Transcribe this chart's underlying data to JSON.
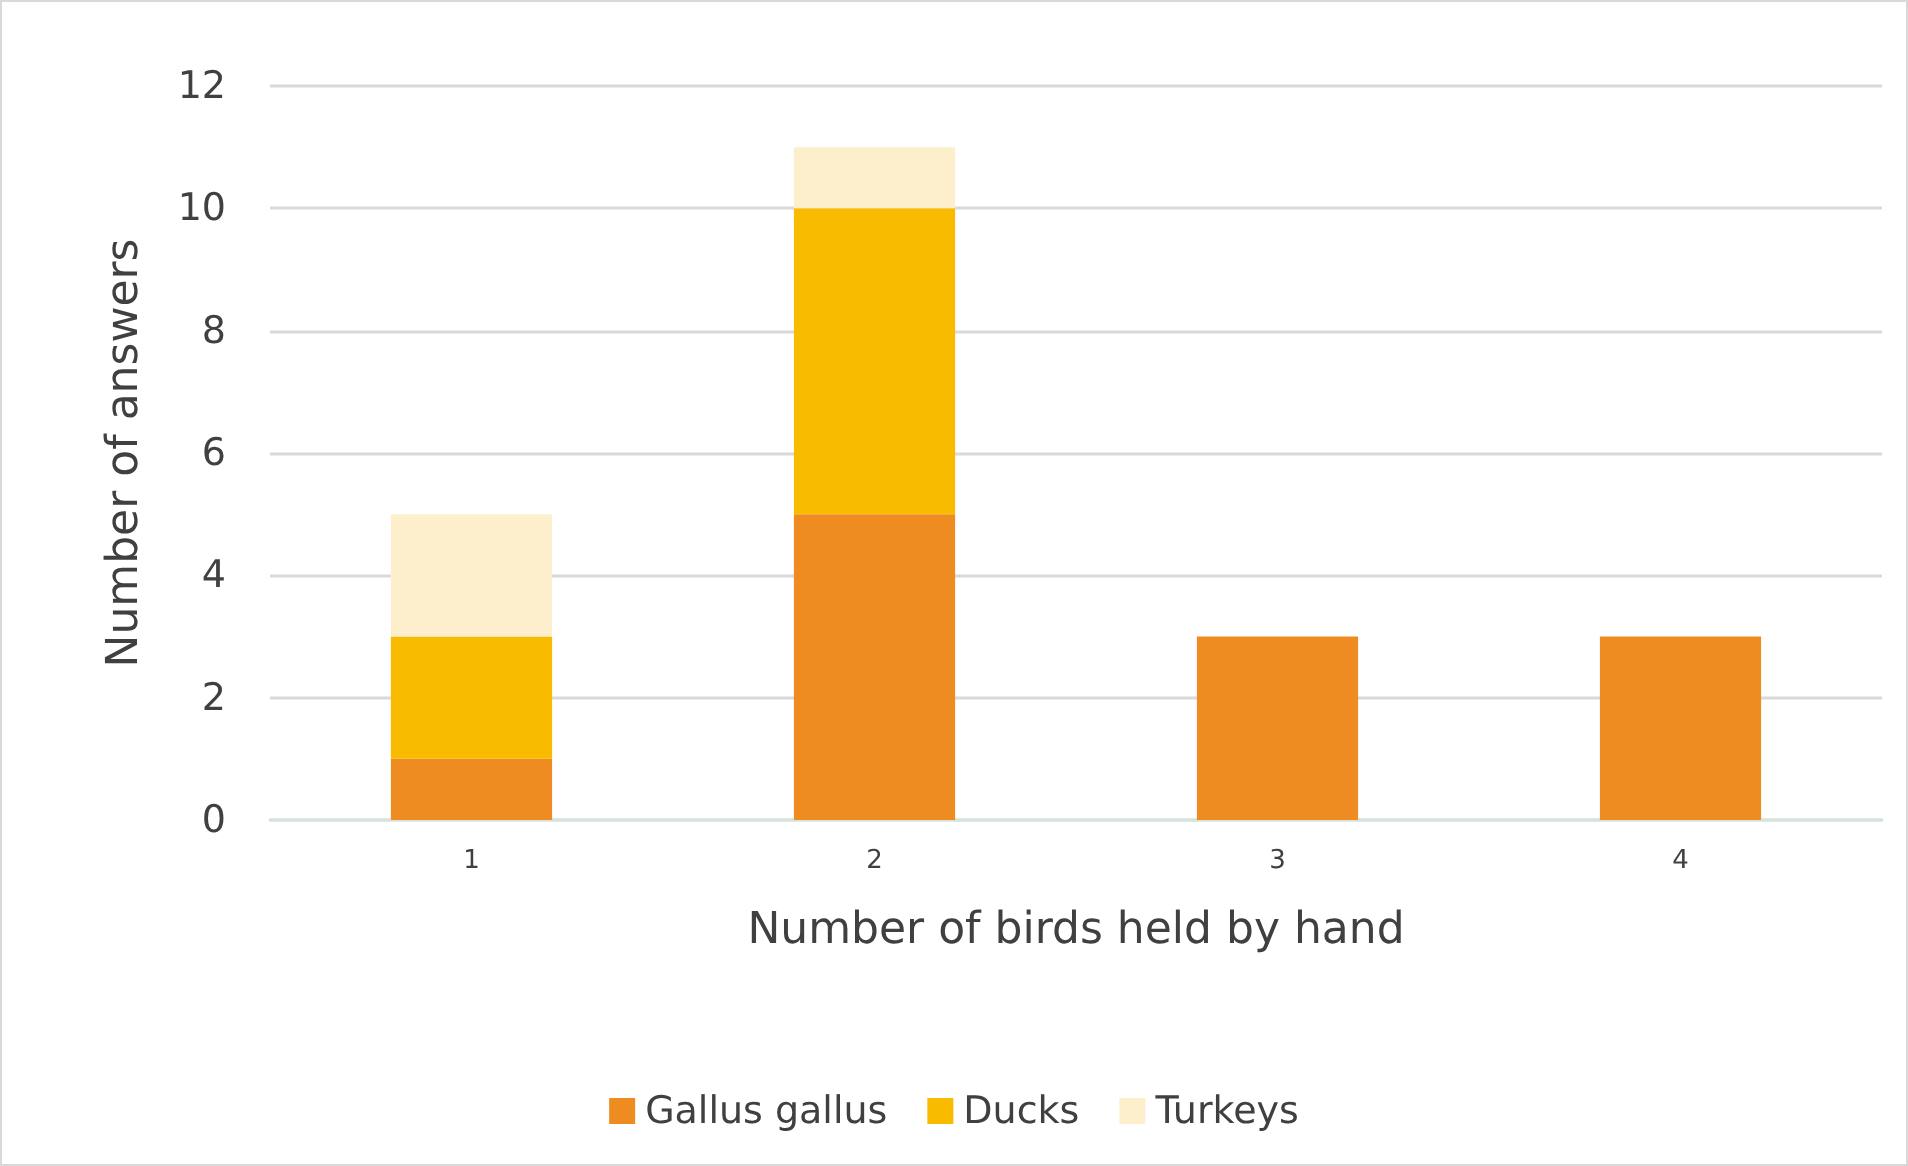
{
  "chart_data": {
    "type": "bar",
    "stacked": true,
    "xlabel": "Number of birds held by hand",
    "ylabel": "Number of answers",
    "categories": [
      "1",
      "2",
      "3",
      "4"
    ],
    "series": [
      {
        "name": "Gallus gallus",
        "color": "#ee8c22",
        "values": [
          1,
          5,
          3,
          3
        ]
      },
      {
        "name": "Ducks",
        "color": "#f8bb00",
        "values": [
          2,
          5,
          0,
          0
        ]
      },
      {
        "name": "Turkeys",
        "color": "#fdefcb",
        "values": [
          2,
          1,
          0,
          0
        ]
      }
    ],
    "ylim": [
      0,
      12
    ],
    "yticks": [
      0,
      2,
      4,
      6,
      8,
      10,
      12
    ],
    "grid": "y",
    "legend": "bottom"
  }
}
